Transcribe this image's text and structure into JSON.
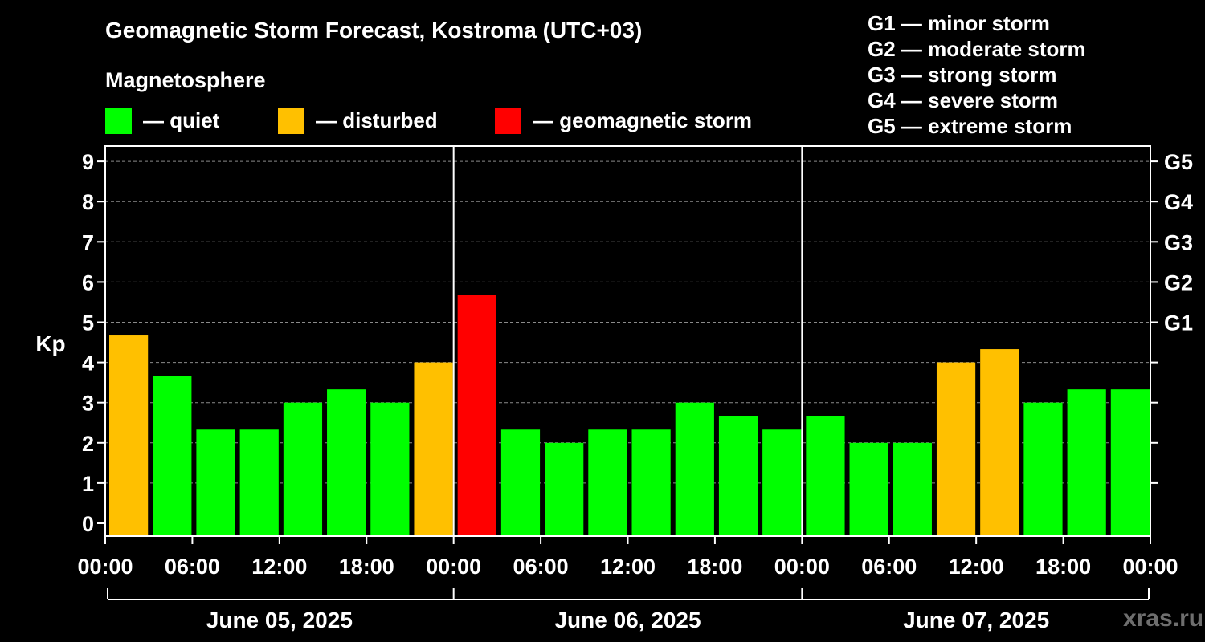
{
  "title": "Geomagnetic Storm Forecast, Kostroma (UTC+03)",
  "subtitle": "Magnetosphere",
  "legend": [
    {
      "label": "— quiet",
      "color": "#00ff00"
    },
    {
      "label": "— disturbed",
      "color": "#ffc000"
    },
    {
      "label": "— geomagnetic storm",
      "color": "#ff0000"
    }
  ],
  "g_legend": [
    "G1 — minor storm",
    "G2 — moderate storm",
    "G3 — strong storm",
    "G4 — severe storm",
    "G5 — extreme storm"
  ],
  "site": "xras.ru",
  "chart_data": {
    "type": "bar",
    "ylabel": "Kp",
    "ylim": [
      0,
      9
    ],
    "yticks": [
      "0",
      "1",
      "2",
      "3",
      "4",
      "5",
      "6",
      "7",
      "8",
      "9"
    ],
    "right_ticks": [
      {
        "label": "G1",
        "value": 5
      },
      {
        "label": "G2",
        "value": 6
      },
      {
        "label": "G3",
        "value": 7
      },
      {
        "label": "G4",
        "value": 8
      },
      {
        "label": "G5",
        "value": 9
      }
    ],
    "x_tick_labels": [
      "00:00",
      "06:00",
      "12:00",
      "18:00",
      "00:00",
      "06:00",
      "12:00",
      "18:00",
      "00:00",
      "06:00",
      "12:00",
      "18:00",
      "00:00"
    ],
    "days": [
      "June 05, 2025",
      "June 06, 2025",
      "June 07, 2025"
    ],
    "grid": true,
    "colors": {
      "quiet": "#00ff00",
      "disturbed": "#ffc000",
      "storm": "#ff0000"
    },
    "values": [
      4.67,
      3.67,
      2.33,
      2.33,
      3.0,
      3.33,
      3.0,
      4.0,
      5.67,
      2.33,
      2.0,
      2.33,
      2.33,
      3.0,
      2.67,
      2.33,
      2.67,
      2.0,
      2.0,
      4.0,
      4.33,
      3.0,
      3.33,
      3.33
    ],
    "status": [
      "disturbed",
      "quiet",
      "quiet",
      "quiet",
      "quiet",
      "quiet",
      "quiet",
      "disturbed",
      "storm",
      "quiet",
      "quiet",
      "quiet",
      "quiet",
      "quiet",
      "quiet",
      "quiet",
      "quiet",
      "quiet",
      "quiet",
      "disturbed",
      "disturbed",
      "quiet",
      "quiet",
      "quiet"
    ]
  }
}
